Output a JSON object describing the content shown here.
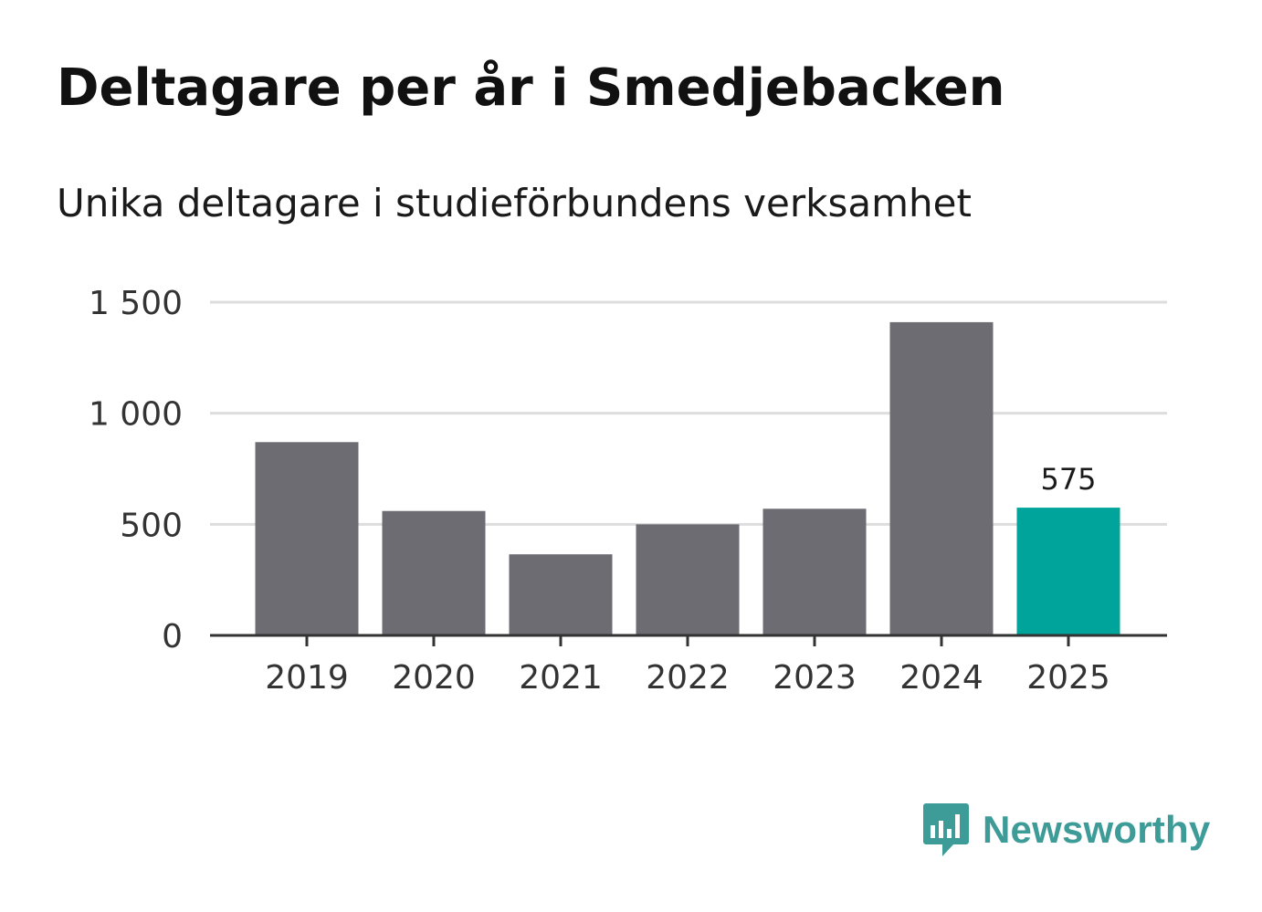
{
  "header": {
    "title": "Deltagare per år i Smedjebacken",
    "subtitle": "Unika deltagare i studieförbundens verksamhet"
  },
  "brand": {
    "name": "Newsworthy",
    "icon": "bar-chart-speech-bubble-icon"
  },
  "colors": {
    "bar": "#6d6c72",
    "highlight": "#00a49a",
    "grid": "#dddddd",
    "axis": "#333333",
    "text": "#333333",
    "brand": "#3d9b98"
  },
  "chart_data": {
    "type": "bar",
    "title": "Deltagare per år i Smedjebacken",
    "subtitle": "Unika deltagare i studieförbundens verksamhet",
    "xlabel": "",
    "ylabel": "",
    "categories": [
      "2019",
      "2020",
      "2021",
      "2022",
      "2023",
      "2024",
      "2025"
    ],
    "values": [
      870,
      560,
      365,
      500,
      570,
      1410,
      575
    ],
    "highlight_index": 6,
    "data_labels": [
      {
        "index": 6,
        "text": "575"
      }
    ],
    "ylim": [
      0,
      1500
    ],
    "yticks": [
      0,
      500,
      1000,
      1500
    ],
    "ytick_labels": [
      "0",
      "500",
      "1 000",
      "1 500"
    ],
    "grid": true,
    "legend": "none"
  }
}
